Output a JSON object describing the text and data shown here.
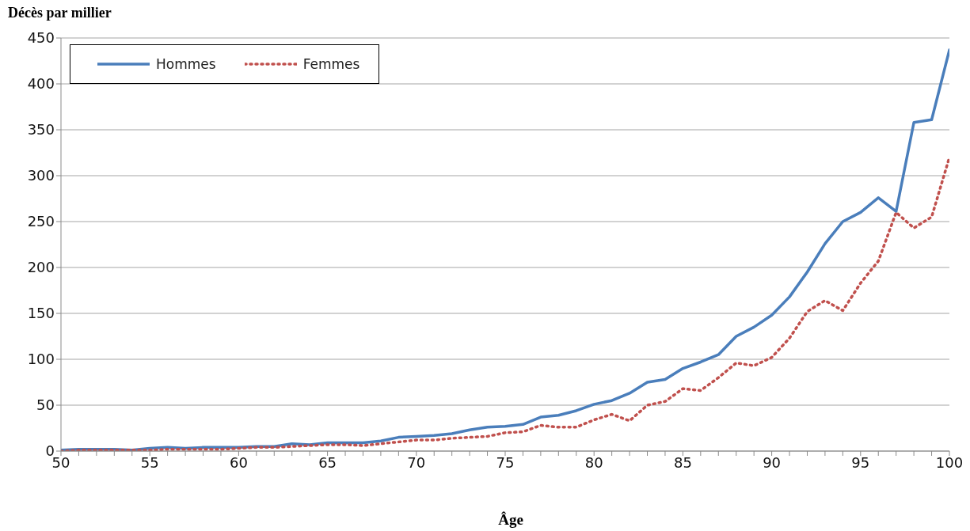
{
  "chart_data": {
    "type": "line",
    "title": "Décès par millier",
    "xlabel": "Âge",
    "x": [
      50,
      51,
      52,
      53,
      54,
      55,
      56,
      57,
      58,
      59,
      60,
      61,
      62,
      63,
      64,
      65,
      66,
      67,
      68,
      69,
      70,
      71,
      72,
      73,
      74,
      75,
      76,
      77,
      78,
      79,
      80,
      81,
      82,
      83,
      84,
      85,
      86,
      87,
      88,
      89,
      90,
      91,
      92,
      93,
      94,
      95,
      96,
      97,
      98,
      99,
      100
    ],
    "series": [
      {
        "name": "Hommes",
        "color": "#4a7ebb",
        "line_style": "solid",
        "values": [
          1,
          2,
          2,
          2,
          1,
          3,
          4,
          3,
          4,
          4,
          4,
          5,
          5,
          8,
          7,
          9,
          9,
          9,
          11,
          15,
          16,
          17,
          19,
          23,
          26,
          27,
          29,
          37,
          39,
          44,
          51,
          55,
          63,
          75,
          78,
          90,
          97,
          105,
          125,
          135,
          148,
          168,
          195,
          226,
          250,
          260,
          276,
          261,
          358,
          361,
          437
        ]
      },
      {
        "name": "Femmes",
        "color": "#c0504d",
        "line_style": "dotted",
        "values": [
          0,
          1,
          1,
          1,
          1,
          1,
          2,
          2,
          2,
          2,
          3,
          4,
          4,
          5,
          6,
          7,
          7,
          6,
          8,
          10,
          12,
          12,
          14,
          15,
          16,
          20,
          21,
          28,
          26,
          26,
          34,
          40,
          33,
          50,
          54,
          68,
          66,
          80,
          96,
          93,
          102,
          123,
          152,
          164,
          153,
          183,
          207,
          260,
          243,
          255,
          320
        ]
      }
    ],
    "xlim": [
      50,
      100
    ],
    "xticks": [
      50,
      {
        "value": 51,
        "label": null
      },
      {
        "value": 52,
        "label": null
      },
      {
        "value": 53,
        "label": null
      },
      {
        "value": 54,
        "label": null
      },
      55,
      {
        "value": 56,
        "label": null
      },
      {
        "value": 57,
        "label": null
      },
      {
        "value": 58,
        "label": null
      },
      {
        "value": 59,
        "label": null
      },
      60,
      {
        "value": 61,
        "label": null
      },
      {
        "value": 62,
        "label": null
      },
      {
        "value": 63,
        "label": null
      },
      {
        "value": 64,
        "label": null
      },
      65,
      {
        "value": 66,
        "label": null
      },
      {
        "value": 67,
        "label": null
      },
      {
        "value": 68,
        "label": null
      },
      {
        "value": 69,
        "label": null
      },
      70,
      {
        "value": 71,
        "label": null
      },
      {
        "value": 72,
        "label": null
      },
      {
        "value": 73,
        "label": null
      },
      {
        "value": 74,
        "label": null
      },
      75,
      {
        "value": 76,
        "label": null
      },
      {
        "value": 77,
        "label": null
      },
      {
        "value": 78,
        "label": null
      },
      {
        "value": 79,
        "label": null
      },
      80,
      {
        "value": 81,
        "label": null
      },
      {
        "value": 82,
        "label": null
      },
      {
        "value": 83,
        "label": null
      },
      {
        "value": 84,
        "label": null
      },
      85,
      {
        "value": 86,
        "label": null
      },
      {
        "value": 87,
        "label": null
      },
      {
        "value": 88,
        "label": null
      },
      {
        "value": 89,
        "label": null
      },
      90,
      {
        "value": 91,
        "label": null
      },
      {
        "value": 92,
        "label": null
      },
      {
        "value": 93,
        "label": null
      },
      {
        "value": 94,
        "label": null
      },
      95,
      {
        "value": 96,
        "label": null
      },
      {
        "value": 97,
        "label": null
      },
      {
        "value": 98,
        "label": null
      },
      {
        "value": 99,
        "label": null
      },
      100
    ],
    "ylim": [
      0,
      450
    ],
    "yticks": [
      0,
      50,
      100,
      150,
      200,
      250,
      300,
      350,
      400,
      450
    ],
    "grid": "y",
    "legend": "top left",
    "marker": "none"
  }
}
